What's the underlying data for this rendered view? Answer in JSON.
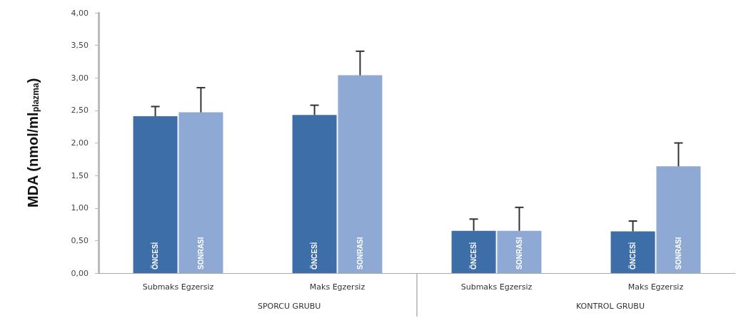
{
  "chart_data": {
    "type": "bar",
    "ylabel": "MDA (nmol/ml$_{plazma}$)",
    "categories": [
      "Submaks Egzersiz",
      "Maks Egzersiz",
      "Submaks Egzersiz",
      "Maks Egzersiz"
    ],
    "series": [
      {
        "name": "ÖNCESİ",
        "color": "#3d6ea8",
        "values": [
          2.41,
          2.43,
          0.65,
          0.64
        ],
        "errors": [
          [
            2.41,
            2.56
          ],
          [
            2.43,
            2.58
          ],
          [
            0.65,
            0.83
          ],
          [
            0.64,
            0.8
          ]
        ]
      },
      {
        "name": "SONRASI",
        "color": "#8ea9d3",
        "values": [
          2.47,
          3.04,
          0.65,
          1.64
        ],
        "errors": [
          [
            2.47,
            2.85
          ],
          [
            3.04,
            3.41
          ],
          [
            0.65,
            1.01
          ],
          [
            1.64,
            2.0
          ]
        ]
      }
    ],
    "ylim": [
      0,
      4
    ],
    "yticks": [
      {
        "value": 0,
        "label": "0,00"
      },
      {
        "value": 0.5,
        "label": "0,50"
      },
      {
        "value": 1,
        "label": "1,00"
      },
      {
        "value": 1.5,
        "label": "1,50"
      },
      {
        "value": 2,
        "label": "2,00"
      },
      {
        "value": 2.5,
        "label": "2,50"
      },
      {
        "value": 3,
        "label": "3,00"
      },
      {
        "value": 3.5,
        "label": "3,50"
      },
      {
        "value": 4,
        "label": "4,00"
      }
    ],
    "annotations": [
      "SPORCU GRUBU",
      "KONTROL GRUBU"
    ],
    "grid": false,
    "legend": false
  }
}
